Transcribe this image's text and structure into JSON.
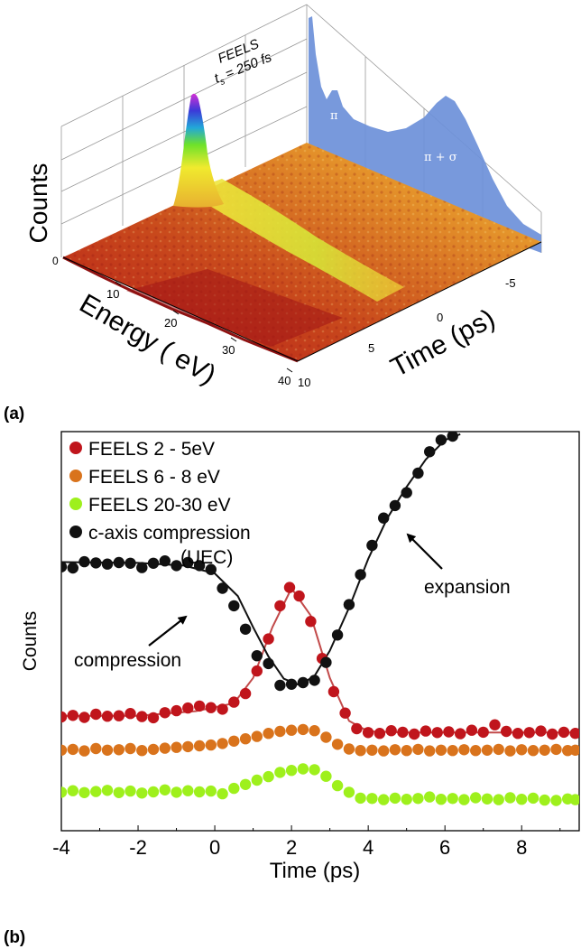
{
  "chart_data": [
    {
      "type": "surface3d",
      "panel_label": "(a)",
      "inset_label_line1": "FEELS",
      "inset_label_line2": "t",
      "inset_label_sub": "s",
      "inset_label_value": "= 250 fs",
      "zlabel": "Counts",
      "xlabel": "Energy ( eV)",
      "ylabel": "Time (ps)",
      "z_ticks": [
        "0"
      ],
      "energy_ticks": [
        "10",
        "20",
        "30",
        "40"
      ],
      "time_ticks": [
        "-5",
        "0",
        "5",
        "10"
      ],
      "peak_labels": [
        "π",
        "π + σ"
      ],
      "colors": {
        "low": "#b4141a",
        "mid": "#e8a020",
        "high": "#f6ee2a",
        "peak_green": "#6fe02c",
        "peak_blue": "#3a3bd8",
        "peak_magenta": "#d22fd6",
        "projection": "#6c90d9"
      }
    },
    {
      "type": "scatter",
      "panel_label": "(b)",
      "xlabel": "Time  (ps)",
      "ylabel": "Counts",
      "xlim": [
        -4,
        9.5
      ],
      "x_ticks": [
        -4,
        -2,
        0,
        2,
        4,
        6,
        8
      ],
      "y_range_relative": [
        0,
        1
      ],
      "annotations": [
        {
          "text": "(UEC)"
        },
        {
          "text": "compression"
        },
        {
          "text": "expansion"
        }
      ],
      "series": [
        {
          "name": "FEELS  2 - 5eV",
          "color": "#c0151c",
          "points": [
            [
              -4,
              0.28
            ],
            [
              -3.7,
              0.284
            ],
            [
              -3.4,
              0.279
            ],
            [
              -3.1,
              0.287
            ],
            [
              -2.8,
              0.282
            ],
            [
              -2.5,
              0.283
            ],
            [
              -2.2,
              0.289
            ],
            [
              -1.9,
              0.281
            ],
            [
              -1.6,
              0.278
            ],
            [
              -1.3,
              0.291
            ],
            [
              -1.0,
              0.296
            ],
            [
              -0.7,
              0.303
            ],
            [
              -0.4,
              0.308
            ],
            [
              -0.1,
              0.304
            ],
            [
              0.2,
              0.3
            ],
            [
              0.5,
              0.318
            ],
            [
              0.8,
              0.34
            ],
            [
              1.1,
              0.398
            ],
            [
              1.4,
              0.48
            ],
            [
              1.7,
              0.565
            ],
            [
              1.95,
              0.612
            ],
            [
              2.2,
              0.59
            ],
            [
              2.5,
              0.525
            ],
            [
              2.8,
              0.43
            ],
            [
              3.1,
              0.345
            ],
            [
              3.4,
              0.29
            ],
            [
              3.7,
              0.25
            ],
            [
              4.0,
              0.24
            ],
            [
              4.3,
              0.238
            ],
            [
              4.6,
              0.245
            ],
            [
              4.9,
              0.241
            ],
            [
              5.2,
              0.236
            ],
            [
              5.5,
              0.244
            ],
            [
              5.8,
              0.24
            ],
            [
              6.1,
              0.242
            ],
            [
              6.4,
              0.237
            ],
            [
              6.7,
              0.246
            ],
            [
              7.0,
              0.241
            ],
            [
              7.3,
              0.26
            ],
            [
              7.6,
              0.243
            ],
            [
              7.9,
              0.238
            ],
            [
              8.2,
              0.24
            ],
            [
              8.5,
              0.244
            ],
            [
              8.8,
              0.236
            ],
            [
              9.1,
              0.241
            ],
            [
              9.4,
              0.238
            ]
          ],
          "fit": [
            [
              -4,
              0.283
            ],
            [
              -2,
              0.283
            ],
            [
              -0.5,
              0.295
            ],
            [
              0.5,
              0.315
            ],
            [
              1.0,
              0.38
            ],
            [
              1.5,
              0.51
            ],
            [
              2.0,
              0.61
            ],
            [
              2.5,
              0.54
            ],
            [
              3.0,
              0.38
            ],
            [
              3.5,
              0.27
            ],
            [
              4.0,
              0.243
            ],
            [
              5,
              0.24
            ],
            [
              7,
              0.24
            ],
            [
              9.5,
              0.24
            ]
          ]
        },
        {
          "name": "FEELS 6 - 8 eV",
          "color": "#d9731c",
          "points": [
            [
              -4,
              0.195
            ],
            [
              -3.7,
              0.197
            ],
            [
              -3.4,
              0.193
            ],
            [
              -3.1,
              0.199
            ],
            [
              -2.8,
              0.195
            ],
            [
              -2.5,
              0.196
            ],
            [
              -2.2,
              0.199
            ],
            [
              -1.9,
              0.194
            ],
            [
              -1.6,
              0.197
            ],
            [
              -1.3,
              0.2
            ],
            [
              -1.0,
              0.202
            ],
            [
              -0.7,
              0.204
            ],
            [
              -0.4,
              0.206
            ],
            [
              -0.1,
              0.208
            ],
            [
              0.2,
              0.212
            ],
            [
              0.5,
              0.218
            ],
            [
              0.8,
              0.224
            ],
            [
              1.1,
              0.23
            ],
            [
              1.4,
              0.238
            ],
            [
              1.7,
              0.243
            ],
            [
              2.0,
              0.246
            ],
            [
              2.3,
              0.248
            ],
            [
              2.6,
              0.245
            ],
            [
              2.9,
              0.228
            ],
            [
              3.2,
              0.21
            ],
            [
              3.5,
              0.198
            ],
            [
              3.8,
              0.194
            ],
            [
              4.1,
              0.195
            ],
            [
              4.4,
              0.193
            ],
            [
              4.7,
              0.196
            ],
            [
              5.0,
              0.194
            ],
            [
              5.3,
              0.197
            ],
            [
              5.6,
              0.193
            ],
            [
              5.9,
              0.195
            ],
            [
              6.2,
              0.194
            ],
            [
              6.5,
              0.196
            ],
            [
              6.8,
              0.194
            ],
            [
              7.1,
              0.195
            ],
            [
              7.4,
              0.197
            ],
            [
              7.7,
              0.193
            ],
            [
              8.0,
              0.196
            ],
            [
              8.3,
              0.194
            ],
            [
              8.6,
              0.195
            ],
            [
              8.9,
              0.197
            ],
            [
              9.2,
              0.194
            ],
            [
              9.4,
              0.195
            ]
          ]
        },
        {
          "name": "FEELS 20-30 eV",
          "color": "#9ef01c",
          "points": [
            [
              -4,
              0.087
            ],
            [
              -3.7,
              0.091
            ],
            [
              -3.4,
              0.086
            ],
            [
              -3.1,
              0.089
            ],
            [
              -2.8,
              0.092
            ],
            [
              -2.5,
              0.086
            ],
            [
              -2.2,
              0.09
            ],
            [
              -1.9,
              0.085
            ],
            [
              -1.6,
              0.088
            ],
            [
              -1.3,
              0.093
            ],
            [
              -1.0,
              0.087
            ],
            [
              -0.7,
              0.091
            ],
            [
              -0.4,
              0.088
            ],
            [
              -0.1,
              0.09
            ],
            [
              0.2,
              0.083
            ],
            [
              0.5,
              0.097
            ],
            [
              0.8,
              0.107
            ],
            [
              1.1,
              0.118
            ],
            [
              1.4,
              0.127
            ],
            [
              1.7,
              0.138
            ],
            [
              2.0,
              0.143
            ],
            [
              2.3,
              0.147
            ],
            [
              2.6,
              0.145
            ],
            [
              2.9,
              0.128
            ],
            [
              3.2,
              0.104
            ],
            [
              3.5,
              0.087
            ],
            [
              3.8,
              0.072
            ],
            [
              4.1,
              0.071
            ],
            [
              4.4,
              0.068
            ],
            [
              4.7,
              0.072
            ],
            [
              5.0,
              0.069
            ],
            [
              5.3,
              0.071
            ],
            [
              5.6,
              0.075
            ],
            [
              5.9,
              0.069
            ],
            [
              6.2,
              0.071
            ],
            [
              6.5,
              0.068
            ],
            [
              6.8,
              0.073
            ],
            [
              7.1,
              0.07
            ],
            [
              7.4,
              0.068
            ],
            [
              7.7,
              0.073
            ],
            [
              8.0,
              0.069
            ],
            [
              8.3,
              0.072
            ],
            [
              8.6,
              0.067
            ],
            [
              8.9,
              0.066
            ],
            [
              9.2,
              0.07
            ],
            [
              9.4,
              0.068
            ]
          ]
        },
        {
          "name": "c-axis compression",
          "color": "#111111",
          "points": [
            [
              -4,
              0.665
            ],
            [
              -3.7,
              0.662
            ],
            [
              -3.4,
              0.678
            ],
            [
              -3.1,
              0.675
            ],
            [
              -2.8,
              0.672
            ],
            [
              -2.5,
              0.676
            ],
            [
              -2.2,
              0.674
            ],
            [
              -1.9,
              0.663
            ],
            [
              -1.6,
              0.674
            ],
            [
              -1.3,
              0.68
            ],
            [
              -1.0,
              0.668
            ],
            [
              -0.7,
              0.676
            ],
            [
              -0.4,
              0.668
            ],
            [
              -0.1,
              0.658
            ],
            [
              0.2,
              0.61
            ],
            [
              0.5,
              0.565
            ],
            [
              0.8,
              0.505
            ],
            [
              1.1,
              0.437
            ],
            [
              1.4,
              0.417
            ],
            [
              1.7,
              0.361
            ],
            [
              2.0,
              0.364
            ],
            [
              2.3,
              0.368
            ],
            [
              2.6,
              0.374
            ],
            [
              2.9,
              0.42
            ],
            [
              3.2,
              0.49
            ],
            [
              3.5,
              0.568
            ],
            [
              3.8,
              0.645
            ],
            [
              4.1,
              0.72
            ],
            [
              4.4,
              0.79
            ],
            [
              4.7,
              0.822
            ],
            [
              5.0,
              0.855
            ],
            [
              5.3,
              0.905
            ],
            [
              5.6,
              0.96
            ],
            [
              5.9,
              0.99
            ],
            [
              6.2,
              1.0
            ]
          ],
          "fit": [
            [
              -4,
              0.677
            ],
            [
              -2,
              0.675
            ],
            [
              -0.8,
              0.668
            ],
            [
              0,
              0.648
            ],
            [
              0.6,
              0.59
            ],
            [
              1.0,
              0.51
            ],
            [
              1.4,
              0.435
            ],
            [
              1.8,
              0.378
            ],
            [
              2.2,
              0.362
            ],
            [
              2.6,
              0.385
            ],
            [
              3.0,
              0.45
            ],
            [
              3.5,
              0.56
            ],
            [
              4.0,
              0.685
            ],
            [
              4.5,
              0.79
            ],
            [
              5.0,
              0.87
            ],
            [
              5.5,
              0.94
            ],
            [
              6.0,
              0.99
            ],
            [
              6.4,
              1.005
            ]
          ]
        }
      ]
    }
  ]
}
